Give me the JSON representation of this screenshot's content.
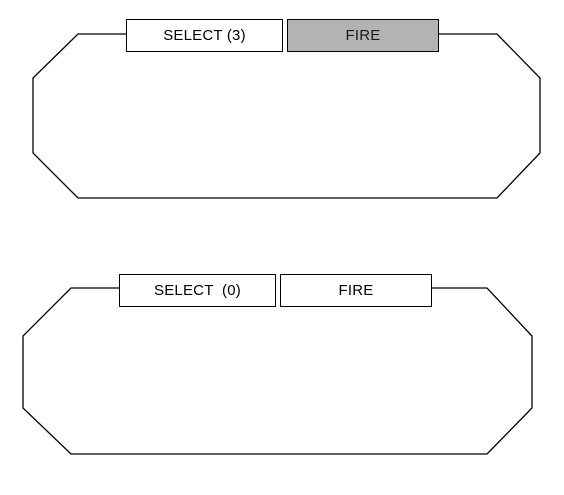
{
  "panels": [
    {
      "select_label": "SELECT (3)",
      "fire_label": "FIRE",
      "fire_state": "disabled"
    },
    {
      "select_label": "SELECT  (0)",
      "fire_label": "FIRE",
      "fire_state": "enabled"
    }
  ],
  "colors": {
    "disabled_button_fill": "#b3b3b3",
    "outline": "#000000",
    "background": "#ffffff"
  }
}
